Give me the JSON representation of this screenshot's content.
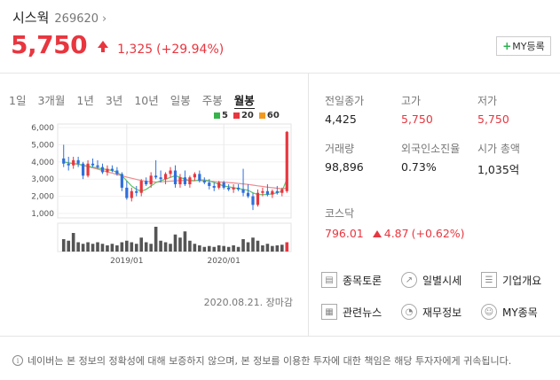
{
  "header": {
    "name": "시스웍",
    "code": "269620",
    "chevron": "›"
  },
  "price": {
    "current": "5,750",
    "change": "1,325",
    "rate": "(+29.94%)",
    "color": "#e8363f"
  },
  "my_button": {
    "plus": "+",
    "label": "MY등록"
  },
  "periods": [
    "1일",
    "3개월",
    "1년",
    "3년",
    "10년",
    "일봉",
    "주봉",
    "월봉"
  ],
  "active_period": "월봉",
  "legend": [
    {
      "label": "5",
      "color": "#36b44a"
    },
    {
      "label": "20",
      "color": "#e8363f"
    },
    {
      "label": "60",
      "color": "#f39a1d"
    }
  ],
  "stats": {
    "prev_close": {
      "label": "전일종가",
      "value": "4,425"
    },
    "high": {
      "label": "고가",
      "value": "5,750"
    },
    "low": {
      "label": "저가",
      "value": "5,750"
    },
    "volume": {
      "label": "거래량",
      "value": "98,896"
    },
    "foreign_ratio": {
      "label": "외국인소진율",
      "value": "0.73%"
    },
    "market_cap": {
      "label": "시가 총액",
      "value": "1,035억"
    }
  },
  "kospi": {
    "label": "코스닥",
    "value": "796.01",
    "change": "4.87",
    "rate": "(+0.62%)"
  },
  "links": [
    {
      "label": "종목토론",
      "icon": "discussion-icon"
    },
    {
      "label": "일별시세",
      "icon": "trend-icon"
    },
    {
      "label": "기업개요",
      "icon": "list-icon"
    },
    {
      "label": "관련뉴스",
      "icon": "news-icon"
    },
    {
      "label": "재무정보",
      "icon": "pie-icon"
    },
    {
      "label": "MY종목",
      "icon": "user-icon"
    }
  ],
  "close_time": "2020.08.21. 장마감",
  "disclaimer": "네이버는 본 정보의 정확성에 대해 보증하지 않으며, 본 정보를 이용한 투자에 대한 책임은 해당 투자자에게 귀속됩니다.",
  "chart_data": {
    "type": "candlestick",
    "ylim": [
      0,
      6000
    ],
    "yticks": [
      "6,000",
      "5,000",
      "4,000",
      "3,000",
      "2,000",
      "1,000"
    ],
    "xticks": [
      "2019/01",
      "2020/01"
    ],
    "up_color": "#e8363f",
    "down_color": "#2f6fdc",
    "candles": [
      {
        "o": 4200,
        "h": 5000,
        "l": 3700,
        "c": 3900
      },
      {
        "o": 3900,
        "h": 4300,
        "l": 3500,
        "c": 3800
      },
      {
        "o": 3800,
        "h": 4300,
        "l": 3600,
        "c": 4100
      },
      {
        "o": 4100,
        "h": 4300,
        "l": 3700,
        "c": 3900
      },
      {
        "o": 3900,
        "h": 4000,
        "l": 3000,
        "c": 3200
      },
      {
        "o": 3200,
        "h": 4100,
        "l": 3100,
        "c": 3900
      },
      {
        "o": 3900,
        "h": 4200,
        "l": 3700,
        "c": 3800
      },
      {
        "o": 3800,
        "h": 4100,
        "l": 3600,
        "c": 3700
      },
      {
        "o": 3700,
        "h": 3900,
        "l": 3300,
        "c": 3400
      },
      {
        "o": 3400,
        "h": 3800,
        "l": 3200,
        "c": 3600
      },
      {
        "o": 3600,
        "h": 3800,
        "l": 3400,
        "c": 3500
      },
      {
        "o": 3500,
        "h": 3700,
        "l": 3200,
        "c": 3300
      },
      {
        "o": 3300,
        "h": 3400,
        "l": 2300,
        "c": 2500
      },
      {
        "o": 2500,
        "h": 2900,
        "l": 1800,
        "c": 1900
      },
      {
        "o": 1900,
        "h": 2500,
        "l": 1700,
        "c": 2300
      },
      {
        "o": 2300,
        "h": 2600,
        "l": 2000,
        "c": 2200
      },
      {
        "o": 2200,
        "h": 3000,
        "l": 2000,
        "c": 2900
      },
      {
        "o": 2900,
        "h": 3100,
        "l": 2600,
        "c": 2700
      },
      {
        "o": 2700,
        "h": 3400,
        "l": 2500,
        "c": 3200
      },
      {
        "o": 3200,
        "h": 4100,
        "l": 3000,
        "c": 3100
      },
      {
        "o": 3100,
        "h": 3500,
        "l": 2800,
        "c": 3000
      },
      {
        "o": 3000,
        "h": 3400,
        "l": 2700,
        "c": 3300
      },
      {
        "o": 3300,
        "h": 3700,
        "l": 3100,
        "c": 3500
      },
      {
        "o": 3500,
        "h": 3800,
        "l": 2500,
        "c": 2700
      },
      {
        "o": 2700,
        "h": 3300,
        "l": 2500,
        "c": 3100
      },
      {
        "o": 3100,
        "h": 3500,
        "l": 2600,
        "c": 2700
      },
      {
        "o": 2700,
        "h": 3200,
        "l": 2500,
        "c": 3100
      },
      {
        "o": 3100,
        "h": 3400,
        "l": 2900,
        "c": 3300
      },
      {
        "o": 3300,
        "h": 3500,
        "l": 2800,
        "c": 2900
      },
      {
        "o": 2900,
        "h": 3100,
        "l": 2700,
        "c": 2800
      },
      {
        "o": 2800,
        "h": 3000,
        "l": 2400,
        "c": 2600
      },
      {
        "o": 2600,
        "h": 2800,
        "l": 2300,
        "c": 2500
      },
      {
        "o": 2500,
        "h": 2900,
        "l": 2400,
        "c": 2800
      },
      {
        "o": 2800,
        "h": 2900,
        "l": 2400,
        "c": 2500
      },
      {
        "o": 2500,
        "h": 2700,
        "l": 2300,
        "c": 2400
      },
      {
        "o": 2400,
        "h": 2700,
        "l": 2200,
        "c": 2500
      },
      {
        "o": 2500,
        "h": 2700,
        "l": 2300,
        "c": 2400
      },
      {
        "o": 2400,
        "h": 3600,
        "l": 2000,
        "c": 2200
      },
      {
        "o": 2200,
        "h": 2700,
        "l": 1900,
        "c": 2000
      },
      {
        "o": 2000,
        "h": 2200,
        "l": 1200,
        "c": 1500
      },
      {
        "o": 1500,
        "h": 2400,
        "l": 1400,
        "c": 2200
      },
      {
        "o": 2200,
        "h": 2500,
        "l": 2000,
        "c": 2300
      },
      {
        "o": 2300,
        "h": 2700,
        "l": 2000,
        "c": 2100
      },
      {
        "o": 2100,
        "h": 2400,
        "l": 1900,
        "c": 2300
      },
      {
        "o": 2300,
        "h": 2600,
        "l": 2100,
        "c": 2200
      },
      {
        "o": 2200,
        "h": 2500,
        "l": 2000,
        "c": 2400
      },
      {
        "o": 2300,
        "h": 5800,
        "l": 2200,
        "c": 5750
      }
    ],
    "ma20": [
      4000,
      3950,
      3900,
      3850,
      3800,
      3720,
      3650,
      3580,
      3500,
      3420,
      3350,
      3270,
      3200,
      3120,
      3050,
      2980,
      2920,
      2870,
      2850,
      2830,
      2840,
      2860,
      2880,
      2900,
      2920,
      2930,
      2930,
      2920,
      2910,
      2900,
      2880,
      2860,
      2840,
      2820,
      2800,
      2780,
      2750,
      2720,
      2690,
      2650,
      2610,
      2570,
      2530,
      2500,
      2470,
      2440,
      2480
    ],
    "ma5": [
      4000,
      3950,
      3900,
      3880,
      3800,
      3750,
      3700,
      3650,
      3600,
      3550,
      3500,
      3400,
      3200,
      2900,
      2600,
      2400,
      2300,
      2400,
      2600,
      2800,
      2900,
      3000,
      3100,
      3200,
      3100,
      3000,
      2900,
      2900,
      2950,
      2950,
      2900,
      2800,
      2700,
      2600,
      2550,
      2500,
      2450,
      2400,
      2350,
      2200,
      2100,
      2100,
      2100,
      2150,
      2200,
      2300,
      3000
    ],
    "volume": [
      40,
      35,
      60,
      30,
      25,
      30,
      25,
      30,
      25,
      20,
      25,
      20,
      30,
      35,
      30,
      25,
      45,
      30,
      25,
      80,
      35,
      30,
      25,
      55,
      45,
      65,
      35,
      25,
      20,
      15,
      18,
      15,
      20,
      18,
      15,
      20,
      15,
      40,
      30,
      45,
      35,
      20,
      25,
      18,
      20,
      22,
      30
    ]
  }
}
